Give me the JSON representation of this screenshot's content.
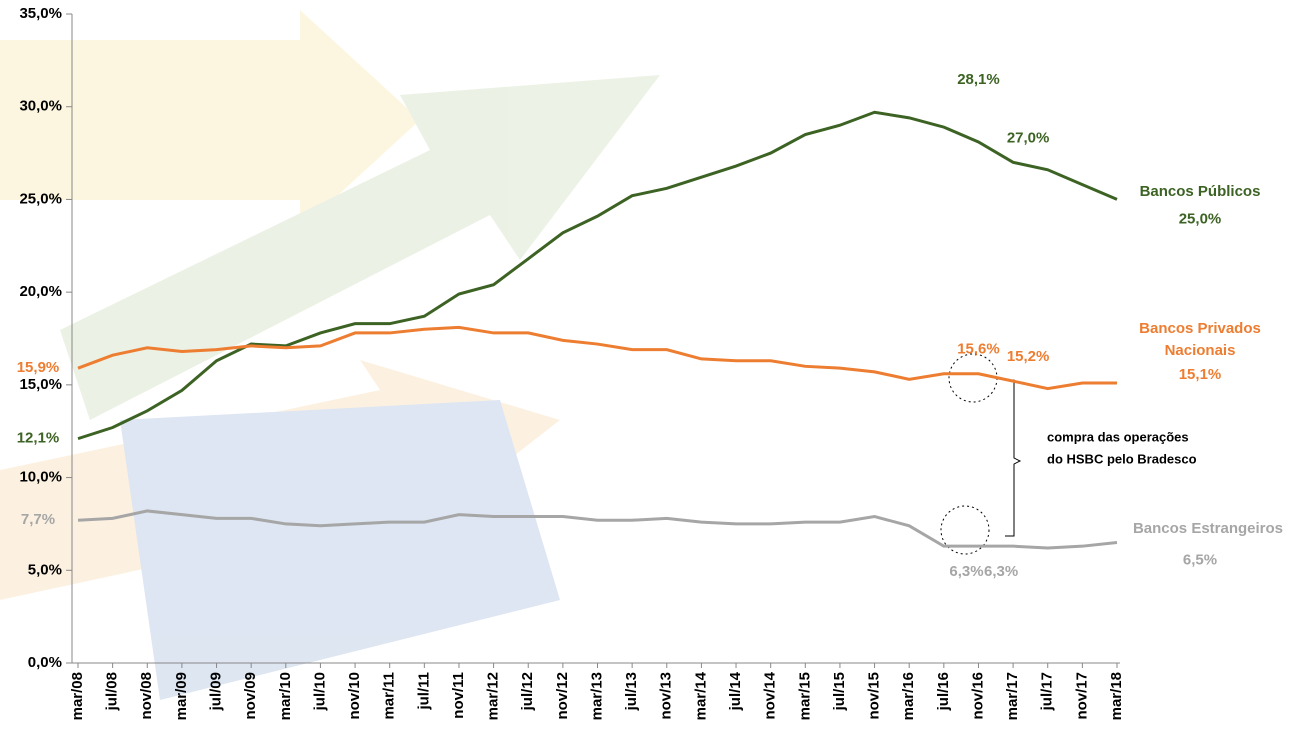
{
  "chart_data": {
    "type": "line",
    "categories": [
      "mar/08",
      "jul/08",
      "nov/08",
      "mar/09",
      "jul/09",
      "nov/09",
      "mar/10",
      "jul/10",
      "nov/10",
      "mar/11",
      "jul/11",
      "nov/11",
      "mar/12",
      "jul/12",
      "nov/12",
      "mar/13",
      "jul/13",
      "nov/13",
      "mar/14",
      "jul/14",
      "nov/14",
      "mar/15",
      "jul/15",
      "nov/15",
      "mar/16",
      "jul/16",
      "nov/16",
      "mar/17",
      "jul/17",
      "nov/17",
      "mar/18"
    ],
    "series": [
      {
        "name": "Bancos Públicos",
        "color": "#3d6324",
        "values": [
          12.1,
          12.7,
          13.6,
          14.7,
          16.3,
          17.2,
          17.1,
          17.8,
          18.3,
          18.3,
          18.7,
          19.9,
          20.4,
          21.8,
          23.2,
          24.1,
          25.2,
          25.6,
          26.2,
          26.8,
          27.5,
          28.5,
          29.0,
          29.7,
          29.4,
          28.9,
          28.1,
          27.0,
          26.6,
          25.8,
          25.0
        ],
        "value_labels": [
          "12,1%",
          null,
          null,
          null,
          null,
          null,
          null,
          null,
          null,
          null,
          null,
          null,
          null,
          null,
          null,
          null,
          null,
          null,
          null,
          null,
          null,
          null,
          null,
          null,
          null,
          null,
          "28,1%",
          "27,0%",
          null,
          null,
          "25,0%"
        ]
      },
      {
        "name": "Bancos Privados Nacionais",
        "color": "#ed7d31",
        "values": [
          15.9,
          16.6,
          17.0,
          16.8,
          16.9,
          17.1,
          17.0,
          17.1,
          17.8,
          17.8,
          18.0,
          18.1,
          17.8,
          17.8,
          17.4,
          17.2,
          16.9,
          16.9,
          16.4,
          16.3,
          16.3,
          16.0,
          15.9,
          15.7,
          15.3,
          15.6,
          15.6,
          15.2,
          14.8,
          15.1,
          15.1
        ],
        "value_labels": [
          "15,9%",
          null,
          null,
          null,
          null,
          null,
          null,
          null,
          null,
          null,
          null,
          null,
          null,
          null,
          null,
          null,
          null,
          null,
          null,
          null,
          null,
          null,
          null,
          null,
          null,
          null,
          "15,6%",
          "15,2%",
          null,
          null,
          "15,1%"
        ]
      },
      {
        "name": "Bancos Estrangeiros",
        "color": "#a6a6a6",
        "values": [
          7.7,
          7.8,
          8.2,
          8.0,
          7.8,
          7.8,
          7.5,
          7.4,
          7.5,
          7.6,
          7.6,
          8.0,
          7.9,
          7.9,
          7.9,
          7.7,
          7.7,
          7.8,
          7.6,
          7.5,
          7.5,
          7.6,
          7.6,
          7.9,
          7.4,
          6.3,
          6.3,
          6.3,
          6.2,
          6.3,
          6.5
        ],
        "value_labels": [
          "7,7%",
          null,
          null,
          null,
          null,
          null,
          null,
          null,
          null,
          null,
          null,
          null,
          null,
          null,
          null,
          null,
          null,
          null,
          null,
          null,
          null,
          null,
          null,
          null,
          null,
          null,
          "6,3%",
          "6,3%",
          null,
          null,
          "6,5%"
        ]
      }
    ],
    "ylim": [
      0,
      35
    ],
    "yticks": [
      {
        "value": 0,
        "label": "0,0%"
      },
      {
        "value": 5,
        "label": "5,0%"
      },
      {
        "value": 10,
        "label": "10,0%"
      },
      {
        "value": 15,
        "label": "15,0%"
      },
      {
        "value": 20,
        "label": "20,0%"
      },
      {
        "value": 25,
        "label": "25,0%"
      },
      {
        "value": 30,
        "label": "30,0%"
      },
      {
        "value": 35,
        "label": "35,0%"
      }
    ],
    "annotation": [
      "compra das operações",
      "do HSBC pelo Bradesco"
    ]
  }
}
